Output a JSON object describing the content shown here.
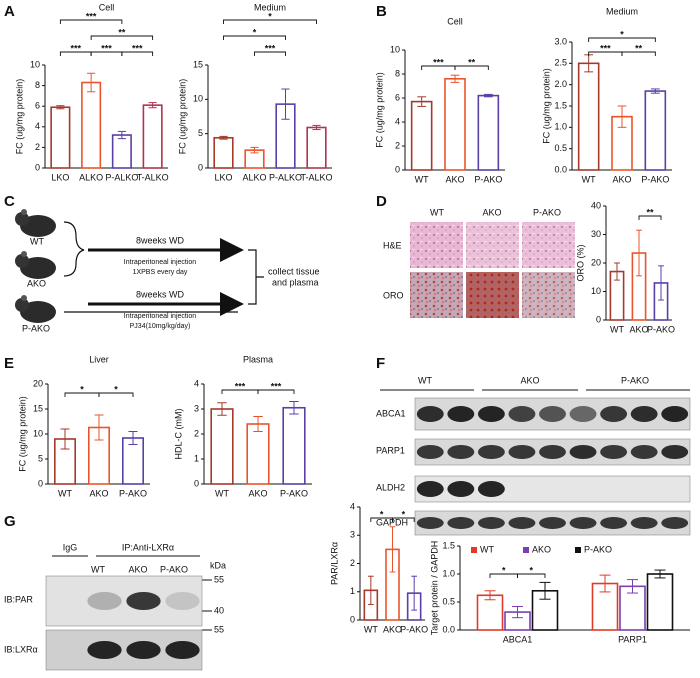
{
  "chart_data": [
    {
      "type": "bar",
      "title": "Cell",
      "ylabel": "FC (ug/mg protein)",
      "categories": [
        "LKO",
        "ALKO",
        "P-ALKO",
        "T-ALKO"
      ],
      "values": [
        5.9,
        8.3,
        3.2,
        6.1
      ],
      "errors": [
        0.15,
        0.9,
        0.35,
        0.25
      ],
      "colors": [
        "#a33a2a",
        "#e9552b",
        "#5a3fa8",
        "#b3334f"
      ],
      "ylim": [
        0,
        10
      ],
      "yticks": [
        0,
        2,
        4,
        6,
        8,
        10
      ],
      "annotations": [
        {
          "text": "***",
          "pair": [
            0,
            1
          ]
        },
        {
          "text": "***",
          "pair": [
            1,
            2
          ]
        },
        {
          "text": "***",
          "pair": [
            2,
            3
          ]
        },
        {
          "text": "**",
          "pair": [
            1,
            3
          ]
        },
        {
          "text": "***",
          "pair": [
            0,
            2
          ]
        }
      ]
    },
    {
      "type": "bar",
      "title": "Medium",
      "ylabel": "FC (ug/mg protein)",
      "categories": [
        "LKO",
        "ALKO",
        "P-ALKO",
        "T-ALKO"
      ],
      "values": [
        4.4,
        2.6,
        9.3,
        5.9
      ],
      "errors": [
        0.2,
        0.4,
        2.2,
        0.3
      ],
      "colors": [
        "#a33a2a",
        "#e9552b",
        "#5a3fa8",
        "#b3334f"
      ],
      "ylim": [
        0,
        15
      ],
      "yticks": [
        0,
        5,
        10,
        15
      ],
      "annotations": [
        {
          "text": "***",
          "pair": [
            1,
            2
          ]
        },
        {
          "text": "*",
          "pair": [
            0,
            2
          ]
        },
        {
          "text": "*",
          "pair": [
            0,
            3
          ]
        }
      ]
    },
    {
      "type": "bar",
      "title": "Cell",
      "ylabel": "FC (ug/mg protein)",
      "categories": [
        "WT",
        "AKO",
        "P-AKO"
      ],
      "values": [
        5.7,
        7.6,
        6.2
      ],
      "errors": [
        0.4,
        0.3,
        0.1
      ],
      "colors": [
        "#a33a2a",
        "#e9552b",
        "#5a3fa8"
      ],
      "ylim": [
        0,
        10
      ],
      "yticks": [
        0,
        2,
        4,
        6,
        8,
        10
      ],
      "annotations": [
        {
          "text": "***",
          "pair": [
            0,
            1
          ]
        },
        {
          "text": "**",
          "pair": [
            1,
            2
          ]
        }
      ]
    },
    {
      "type": "bar",
      "title": "Medium",
      "ylabel": "FC (ug/mg protein)",
      "categories": [
        "WT",
        "AKO",
        "P-AKO"
      ],
      "values": [
        2.5,
        1.25,
        1.85
      ],
      "errors": [
        0.2,
        0.25,
        0.05
      ],
      "colors": [
        "#a33a2a",
        "#e9552b",
        "#5a3fa8"
      ],
      "ylim": [
        0,
        3
      ],
      "yticks": [
        {
          "value": 0,
          "label": "0.0"
        },
        0.5,
        {
          "value": 1,
          "label": "1.0"
        },
        1.5,
        {
          "value": 2,
          "label": "2.0"
        },
        2.5,
        {
          "value": 3,
          "label": "3.0"
        }
      ],
      "annotations": [
        {
          "text": "***",
          "pair": [
            0,
            1
          ]
        },
        {
          "text": "**",
          "pair": [
            1,
            2
          ]
        },
        {
          "text": "*",
          "pair": [
            0,
            2
          ]
        }
      ]
    },
    {
      "type": "bar",
      "ylabel": "ORO (%)",
      "categories": [
        "WT",
        "AKO",
        "P-AKO"
      ],
      "values": [
        17,
        23.5,
        13
      ],
      "errors": [
        3,
        8,
        6
      ],
      "colors": [
        "#a33a2a",
        "#e9552b",
        "#5a3fa8"
      ],
      "ylim": [
        0,
        40
      ],
      "yticks": [
        0,
        10,
        20,
        30,
        40
      ],
      "annotations": [
        {
          "text": "**",
          "pair": [
            1,
            2
          ]
        }
      ]
    },
    {
      "type": "bar",
      "title": "Liver",
      "ylabel": "FC (ug/mg protein)",
      "categories": [
        "WT",
        "AKO",
        "P-AKO"
      ],
      "values": [
        9,
        11.3,
        9.2
      ],
      "errors": [
        2,
        2.5,
        1.3
      ],
      "colors": [
        "#a33a2a",
        "#e9552b",
        "#5a3fa8"
      ],
      "ylim": [
        0,
        20
      ],
      "yticks": [
        0,
        5,
        10,
        15,
        20
      ],
      "annotations": [
        {
          "text": "*",
          "pair": [
            0,
            1
          ]
        },
        {
          "text": "*",
          "pair": [
            1,
            2
          ]
        }
      ]
    },
    {
      "type": "bar",
      "title": "Plasma",
      "ylabel": "HDL-C (mM)",
      "categories": [
        "WT",
        "AKO",
        "P-AKO"
      ],
      "values": [
        3.0,
        2.4,
        3.05
      ],
      "errors": [
        0.25,
        0.3,
        0.25
      ],
      "colors": [
        "#a33a2a",
        "#e9552b",
        "#5a3fa8"
      ],
      "ylim": [
        0,
        4
      ],
      "yticks": [
        0,
        1,
        2,
        3,
        4
      ],
      "annotations": [
        {
          "text": "***",
          "pair": [
            0,
            1
          ]
        },
        {
          "text": "***",
          "pair": [
            1,
            2
          ]
        }
      ]
    },
    {
      "type": "grouped_bar",
      "ylabel": "Target protein / GAPDH",
      "categories": [
        "ABCA1",
        "PARP1"
      ],
      "ylim": [
        0,
        1.5
      ],
      "yticks": [
        {
          "value": 0,
          "label": "0.0"
        },
        0.5,
        {
          "value": 1,
          "label": "1.0"
        },
        1.5
      ],
      "series": [
        {
          "name": "WT",
          "color": "#e03a2a",
          "values": [
            0.62,
            0.83
          ],
          "errors": [
            0.08,
            0.15
          ]
        },
        {
          "name": "AKO",
          "color": "#7a3fb0",
          "values": [
            0.32,
            0.78
          ],
          "errors": [
            0.1,
            0.12
          ]
        },
        {
          "name": "P-AKO",
          "color": "#111111",
          "values": [
            0.7,
            1.0
          ],
          "errors": [
            0.15,
            0.07
          ]
        }
      ],
      "annotations": [
        {
          "text": "*",
          "category": 0,
          "pair": [
            0,
            1
          ]
        },
        {
          "text": "*",
          "category": 0,
          "pair": [
            1,
            2
          ]
        }
      ]
    },
    {
      "type": "bar",
      "ylabel": "PAR/LXRα",
      "categories": [
        "WT",
        "AKO",
        "P-AKO"
      ],
      "values": [
        1.05,
        2.5,
        0.95
      ],
      "errors": [
        0.5,
        0.8,
        0.6
      ],
      "colors": [
        "#a33a2a",
        "#e9552b",
        "#5a3fa8"
      ],
      "ylim": [
        0,
        4
      ],
      "yticks": [
        0,
        1,
        2,
        3,
        4
      ],
      "annotations": [
        {
          "text": "*",
          "pair": [
            0,
            1
          ]
        },
        {
          "text": "*",
          "pair": [
            1,
            2
          ]
        }
      ]
    }
  ],
  "panels": {
    "letters": [
      "A",
      "B",
      "C",
      "D",
      "E",
      "F",
      "G"
    ],
    "c": {
      "mice": [
        "WT",
        "AKO",
        "P-AKO"
      ],
      "arm1": [
        "8weeks WD",
        "Intraperitoneal injection",
        "1XPBS every day"
      ],
      "arm2": [
        "8weeks WD",
        "Intraperitoneal injection",
        "PJ34(10mg/kg/day)"
      ],
      "outcome": [
        "collect tissue",
        "and plasma"
      ]
    },
    "d": {
      "columns": [
        "WT",
        "AKO",
        "P-AKO"
      ],
      "rows": [
        "H&E",
        "ORO"
      ]
    },
    "f": {
      "groups": [
        "WT",
        "AKO",
        "P-AKO"
      ],
      "rows": [
        "ABCA1",
        "PARP1",
        "ALDH2",
        "GAPDH"
      ]
    },
    "g": {
      "control": "IgG",
      "ip": "IP:Anti-LXRα",
      "lanes": [
        "WT",
        "AKO",
        "P-AKO"
      ],
      "unit": "kDa",
      "rows": [
        "IB:PAR",
        "IB:LXRα"
      ],
      "markers": [
        "55",
        "40",
        "55"
      ]
    }
  }
}
